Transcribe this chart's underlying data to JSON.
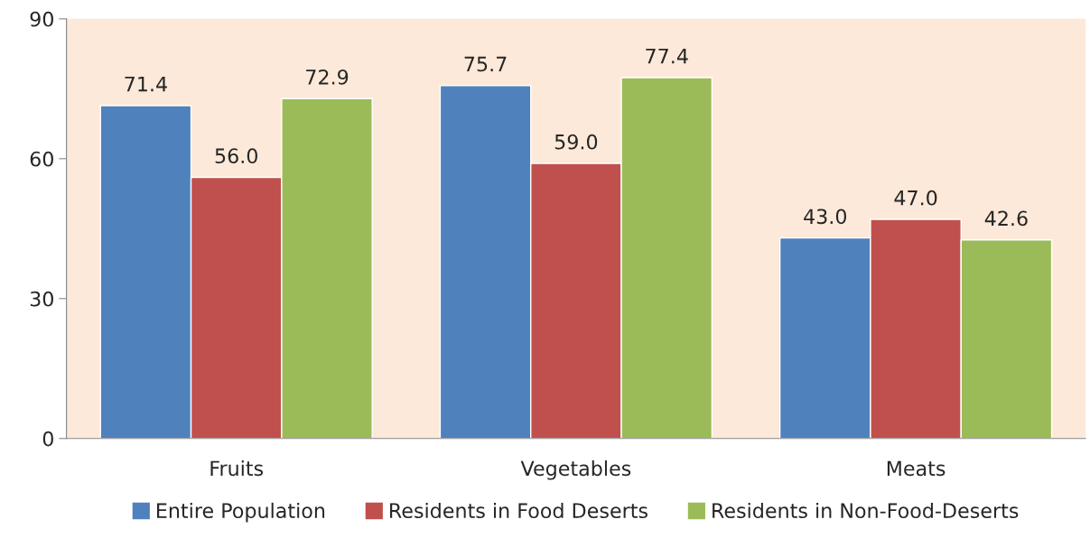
{
  "chart_data": {
    "type": "bar",
    "categories": [
      "Fruits",
      "Vegetables",
      "Meats"
    ],
    "series": [
      {
        "name": "Entire Population",
        "color": "#4f81bd",
        "values": [
          71.4,
          75.7,
          43.0
        ],
        "value_labels": [
          "71.4",
          "75.7",
          "43.0"
        ]
      },
      {
        "name": "Residents in Food Deserts",
        "color": "#c0504d",
        "values": [
          56.0,
          59.0,
          47.0
        ],
        "value_labels": [
          "56.0",
          "59.0",
          "47.0"
        ]
      },
      {
        "name": "Residents in Non-Food-Deserts",
        "color": "#9bbb59",
        "values": [
          72.9,
          77.4,
          42.6
        ],
        "value_labels": [
          "72.9",
          "77.4",
          "42.6"
        ]
      }
    ],
    "ylim": [
      0,
      90
    ],
    "yticks": [
      0,
      30,
      60,
      90
    ],
    "grid": false,
    "legend": "bottom"
  }
}
